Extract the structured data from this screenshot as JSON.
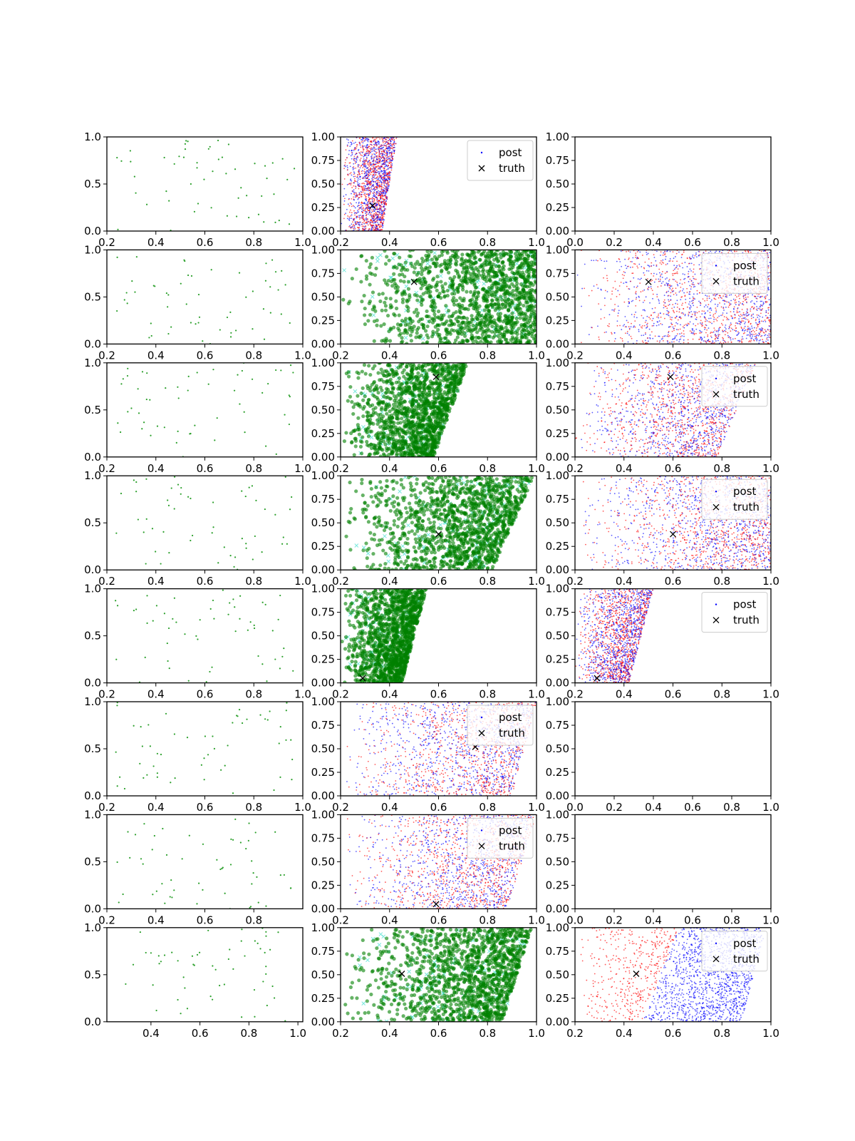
{
  "figure": {
    "rows": 8,
    "cols": 3,
    "colors": {
      "points_left": "#2ca02c",
      "posterior_green": "#008000",
      "proposal_cyan": "#40e0d0",
      "posterior_red": "#ff0000",
      "posterior_blue": "#0000ff",
      "truth": "#000000",
      "axes": "#000000",
      "background": "#ffffff"
    }
  },
  "legend": {
    "post": "post",
    "truth": "truth"
  },
  "chart_data": [
    {
      "row": 0,
      "col": 0,
      "type": "scatter",
      "style": "sparse",
      "xlim": [
        0.2,
        1.0
      ],
      "ylim": [
        0.0,
        1.0
      ],
      "xticks": [
        "0.2",
        "0.4",
        "0.6",
        "0.8",
        "1.0"
      ],
      "yticks": [
        "0.0",
        "0.5",
        "1.0"
      ]
    },
    {
      "row": 0,
      "col": 1,
      "type": "scatter",
      "style": "redblue",
      "xlim": [
        0.2,
        1.0
      ],
      "ylim": [
        0.0,
        1.0
      ],
      "xticks": [
        "0.2",
        "0.4",
        "0.6",
        "0.8",
        "1.0"
      ],
      "yticks": [
        "0.00",
        "0.25",
        "0.50",
        "0.75",
        "1.00"
      ],
      "truth": [
        0.33,
        0.27
      ],
      "legend": true,
      "legend_pos": "upper right",
      "region": {
        "x_bottom": [
          0.2,
          0.37
        ],
        "x_top": [
          0.2,
          0.43
        ]
      }
    },
    {
      "row": 0,
      "col": 2,
      "type": "scatter",
      "style": "empty",
      "xlim": [
        0.0,
        1.0
      ],
      "ylim": [
        0.0,
        1.0
      ],
      "xticks": [
        "0.0",
        "0.2",
        "0.4",
        "0.6",
        "0.8",
        "1.0"
      ],
      "yticks": [
        "0.00",
        "0.25",
        "0.50",
        "0.75",
        "1.00"
      ]
    },
    {
      "row": 1,
      "col": 0,
      "type": "scatter",
      "style": "sparse",
      "xlim": [
        0.2,
        1.0
      ],
      "ylim": [
        0.0,
        1.0
      ],
      "xticks": [
        "0.2",
        "0.4",
        "0.6",
        "0.8",
        "1.0"
      ],
      "yticks": [
        "0.0",
        "0.5",
        "1.0"
      ]
    },
    {
      "row": 1,
      "col": 1,
      "type": "scatter",
      "style": "green",
      "xlim": [
        0.2,
        1.0
      ],
      "ylim": [
        0.0,
        1.0
      ],
      "xticks": [
        "0.2",
        "0.4",
        "0.6",
        "0.8",
        "1.0"
      ],
      "yticks": [
        "0.00",
        "0.25",
        "0.50",
        "0.75",
        "1.00"
      ],
      "truth": [
        0.5,
        0.66
      ],
      "region": {
        "x_bottom": [
          0.2,
          1.0
        ],
        "x_top": [
          0.2,
          1.0
        ]
      }
    },
    {
      "row": 1,
      "col": 2,
      "type": "scatter",
      "style": "redblue",
      "xlim": [
        0.2,
        1.0
      ],
      "ylim": [
        0.0,
        1.0
      ],
      "xticks": [
        "0.2",
        "0.4",
        "0.6",
        "0.8",
        "1.0"
      ],
      "yticks": [
        "0.00",
        "0.25",
        "0.50",
        "0.75",
        "1.00"
      ],
      "truth": [
        0.5,
        0.66
      ],
      "legend": true,
      "legend_pos": "upper right",
      "region": {
        "x_bottom": [
          0.2,
          1.0
        ],
        "x_top": [
          0.2,
          1.0
        ]
      }
    },
    {
      "row": 2,
      "col": 0,
      "type": "scatter",
      "style": "sparse",
      "xlim": [
        0.2,
        1.0
      ],
      "ylim": [
        0.0,
        1.0
      ],
      "xticks": [
        "0.2",
        "0.4",
        "0.6",
        "0.8",
        "1.0"
      ],
      "yticks": [
        "0.0",
        "0.5",
        "1.0"
      ]
    },
    {
      "row": 2,
      "col": 1,
      "type": "scatter",
      "style": "green",
      "xlim": [
        0.2,
        1.0
      ],
      "ylim": [
        0.0,
        1.0
      ],
      "xticks": [
        "0.2",
        "0.4",
        "0.6",
        "0.8",
        "1.0"
      ],
      "yticks": [
        "0.00",
        "0.25",
        "0.50",
        "0.75",
        "1.00"
      ],
      "truth": [
        0.59,
        0.85
      ],
      "region": {
        "x_bottom": [
          0.2,
          0.58
        ],
        "x_top": [
          0.2,
          0.72
        ]
      }
    },
    {
      "row": 2,
      "col": 2,
      "type": "scatter",
      "style": "redblue",
      "xlim": [
        0.2,
        1.0
      ],
      "ylim": [
        0.0,
        1.0
      ],
      "xticks": [
        "0.2",
        "0.4",
        "0.6",
        "0.8",
        "1.0"
      ],
      "yticks": [
        "0.00",
        "0.25",
        "0.50",
        "0.75",
        "1.00"
      ],
      "truth": [
        0.59,
        0.85
      ],
      "legend": true,
      "legend_pos": "upper right",
      "region": {
        "x_bottom": [
          0.2,
          0.78
        ],
        "x_top": [
          0.2,
          0.94
        ]
      }
    },
    {
      "row": 3,
      "col": 0,
      "type": "scatter",
      "style": "sparse",
      "xlim": [
        0.2,
        1.0
      ],
      "ylim": [
        0.0,
        1.0
      ],
      "xticks": [
        "0.2",
        "0.4",
        "0.6",
        "0.8",
        "1.0"
      ],
      "yticks": [
        "0.0",
        "0.5",
        "1.0"
      ]
    },
    {
      "row": 3,
      "col": 1,
      "type": "scatter",
      "style": "green",
      "xlim": [
        0.2,
        1.0
      ],
      "ylim": [
        0.0,
        1.0
      ],
      "xticks": [
        "0.2",
        "0.4",
        "0.6",
        "0.8",
        "1.0"
      ],
      "yticks": [
        "0.00",
        "0.25",
        "0.50",
        "0.75",
        "1.00"
      ],
      "truth": [
        0.6,
        0.38
      ],
      "region": {
        "x_bottom": [
          0.2,
          0.82
        ],
        "x_top": [
          0.2,
          0.99
        ]
      }
    },
    {
      "row": 3,
      "col": 2,
      "type": "scatter",
      "style": "redblue",
      "xlim": [
        0.2,
        1.0
      ],
      "ylim": [
        0.0,
        1.0
      ],
      "xticks": [
        "0.2",
        "0.4",
        "0.6",
        "0.8",
        "1.0"
      ],
      "yticks": [
        "0.00",
        "0.25",
        "0.50",
        "0.75",
        "1.00"
      ],
      "truth": [
        0.6,
        0.38
      ],
      "legend": true,
      "legend_pos": "upper right",
      "region": {
        "x_bottom": [
          0.2,
          1.0
        ],
        "x_top": [
          0.2,
          1.0
        ]
      }
    },
    {
      "row": 4,
      "col": 0,
      "type": "scatter",
      "style": "sparse",
      "xlim": [
        0.2,
        1.0
      ],
      "ylim": [
        0.0,
        1.0
      ],
      "xticks": [
        "0.2",
        "0.4",
        "0.6",
        "0.8",
        "1.0"
      ],
      "yticks": [
        "0.0",
        "0.5",
        "1.0"
      ]
    },
    {
      "row": 4,
      "col": 1,
      "type": "scatter",
      "style": "green",
      "xlim": [
        0.2,
        1.0
      ],
      "ylim": [
        0.0,
        1.0
      ],
      "xticks": [
        "0.2",
        "0.4",
        "0.6",
        "0.8",
        "1.0"
      ],
      "yticks": [
        "0.00",
        "0.25",
        "0.50",
        "0.75",
        "1.00"
      ],
      "truth": [
        0.29,
        0.05
      ],
      "region": {
        "x_bottom": [
          0.2,
          0.45
        ],
        "x_top": [
          0.2,
          0.55
        ]
      }
    },
    {
      "row": 4,
      "col": 2,
      "type": "scatter",
      "style": "redblue",
      "xlim": [
        0.2,
        1.0
      ],
      "ylim": [
        0.0,
        1.0
      ],
      "xticks": [
        "0.2",
        "0.4",
        "0.6",
        "0.8",
        "1.0"
      ],
      "yticks": [
        "0.00",
        "0.25",
        "0.50",
        "0.75",
        "1.00"
      ],
      "truth": [
        0.29,
        0.05
      ],
      "legend": true,
      "legend_pos": "upper right",
      "region": {
        "x_bottom": [
          0.2,
          0.42
        ],
        "x_top": [
          0.2,
          0.52
        ]
      }
    },
    {
      "row": 5,
      "col": 0,
      "type": "scatter",
      "style": "sparse",
      "xlim": [
        0.2,
        1.0
      ],
      "ylim": [
        0.0,
        1.0
      ],
      "xticks": [
        "0.2",
        "0.4",
        "0.6",
        "0.8",
        "1.0"
      ],
      "yticks": [
        "0.0",
        "0.5",
        "1.0"
      ]
    },
    {
      "row": 5,
      "col": 1,
      "type": "scatter",
      "style": "redblue",
      "xlim": [
        0.2,
        1.0
      ],
      "ylim": [
        0.0,
        1.0
      ],
      "xticks": [
        "0.2",
        "0.4",
        "0.6",
        "0.8",
        "1.0"
      ],
      "yticks": [
        "0.00",
        "0.25",
        "0.50",
        "0.75",
        "1.00"
      ],
      "truth": [
        0.75,
        0.52
      ],
      "legend": true,
      "legend_pos": "upper right",
      "region": {
        "x_bottom": [
          0.2,
          0.9
        ],
        "x_top": [
          0.2,
          1.0
        ]
      }
    },
    {
      "row": 5,
      "col": 2,
      "type": "scatter",
      "style": "empty",
      "xlim": [
        0.0,
        1.0
      ],
      "ylim": [
        0.0,
        1.0
      ],
      "xticks": [
        "0.0",
        "0.2",
        "0.4",
        "0.6",
        "0.8",
        "1.0"
      ],
      "yticks": [
        "0.00",
        "0.25",
        "0.50",
        "0.75",
        "1.00"
      ]
    },
    {
      "row": 6,
      "col": 0,
      "type": "scatter",
      "style": "sparse",
      "xlim": [
        0.2,
        1.0
      ],
      "ylim": [
        0.0,
        1.0
      ],
      "xticks": [
        "0.2",
        "0.4",
        "0.6",
        "0.8"
      ],
      "yticks": [
        "0.0",
        "0.5",
        "1.0"
      ]
    },
    {
      "row": 6,
      "col": 1,
      "type": "scatter",
      "style": "redblue",
      "xlim": [
        0.2,
        1.0
      ],
      "ylim": [
        0.0,
        1.0
      ],
      "xticks": [
        "0.2",
        "0.4",
        "0.6",
        "0.8",
        "1.0"
      ],
      "yticks": [
        "0.00",
        "0.25",
        "0.50",
        "0.75",
        "1.00"
      ],
      "truth": [
        0.59,
        0.05
      ],
      "legend": true,
      "legend_pos": "upper right",
      "region": {
        "x_bottom": [
          0.2,
          0.88
        ],
        "x_top": [
          0.2,
          1.0
        ]
      }
    },
    {
      "row": 6,
      "col": 2,
      "type": "scatter",
      "style": "empty",
      "xlim": [
        0.0,
        1.0
      ],
      "ylim": [
        0.0,
        1.0
      ],
      "xticks": [
        "0.0",
        "0.2",
        "0.4",
        "0.6",
        "0.8",
        "1.0"
      ],
      "yticks": [
        "0.00",
        "0.25",
        "0.50",
        "0.75",
        "1.00"
      ]
    },
    {
      "row": 7,
      "col": 0,
      "type": "scatter",
      "style": "sparse",
      "xlim": [
        0.22,
        1.02
      ],
      "ylim": [
        0.0,
        1.0
      ],
      "xticks": [
        "0.4",
        "0.6",
        "0.8",
        "1.0"
      ],
      "yticks": [
        "0.0",
        "0.5",
        "1.0"
      ]
    },
    {
      "row": 7,
      "col": 1,
      "type": "scatter",
      "style": "green",
      "xlim": [
        0.2,
        1.0
      ],
      "ylim": [
        0.0,
        1.0
      ],
      "xticks": [
        "0.2",
        "0.4",
        "0.6",
        "0.8",
        "1.0"
      ],
      "yticks": [
        "0.00",
        "0.25",
        "0.50",
        "0.75",
        "1.00"
      ],
      "truth": [
        0.45,
        0.51
      ],
      "region": {
        "x_bottom": [
          0.2,
          0.86
        ],
        "x_top": [
          0.2,
          0.98
        ]
      }
    },
    {
      "row": 7,
      "col": 2,
      "type": "scatter",
      "style": "redblue",
      "xlim": [
        0.2,
        1.0
      ],
      "ylim": [
        0.0,
        1.0
      ],
      "xticks": [
        "0.2",
        "0.4",
        "0.6",
        "0.8",
        "1.0"
      ],
      "yticks": [
        "0.00",
        "0.25",
        "0.50",
        "0.75",
        "1.00"
      ],
      "truth": [
        0.45,
        0.51
      ],
      "legend": true,
      "legend_pos": "upper right",
      "region": {
        "x_bottom": [
          0.2,
          0.88
        ],
        "x_top": [
          0.2,
          0.98
        ]
      },
      "split": 0.55
    }
  ]
}
